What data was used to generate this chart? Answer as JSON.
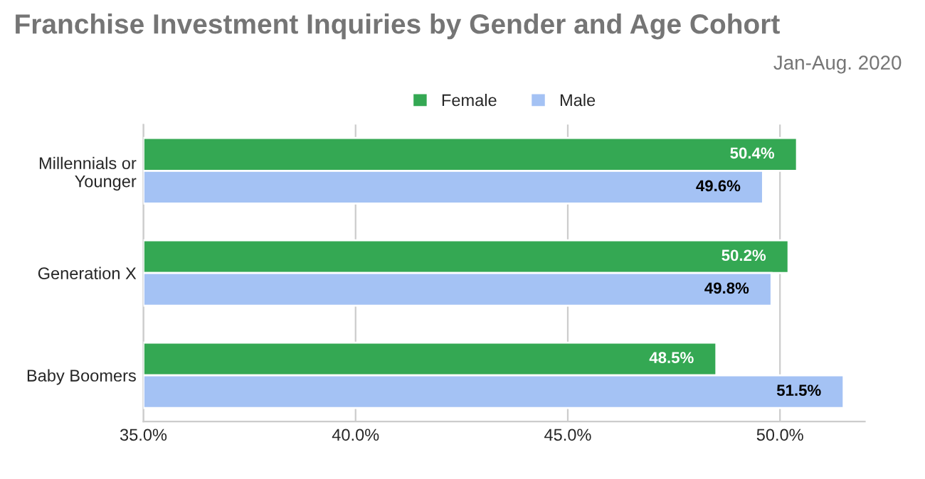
{
  "chart_data": {
    "type": "bar",
    "orientation": "horizontal",
    "title": "Franchise Investment Inquiries by Gender and Age Cohort",
    "annotations": [
      "Jan-Aug. 2020"
    ],
    "categories": [
      "Millennials or\nYounger",
      "Generation X",
      "Baby Boomers"
    ],
    "series": [
      {
        "name": "Female",
        "color": "#34a853",
        "values": [
          50.4,
          50.2,
          48.5
        ],
        "value_labels": [
          "50.4%",
          "50.2%",
          "48.5%"
        ]
      },
      {
        "name": "Male",
        "color": "#a4c2f4",
        "values": [
          49.6,
          49.8,
          51.5
        ],
        "value_labels": [
          "49.6%",
          "49.8%",
          "51.5%"
        ]
      }
    ],
    "xlim": [
      35,
      52
    ],
    "xticks": [
      {
        "value": 35,
        "label": "35.0%"
      },
      {
        "value": 40,
        "label": "40.0%"
      },
      {
        "value": 45,
        "label": "45.0%"
      },
      {
        "value": 50,
        "label": "50.0%"
      }
    ],
    "grid": "x",
    "legend": "top"
  }
}
